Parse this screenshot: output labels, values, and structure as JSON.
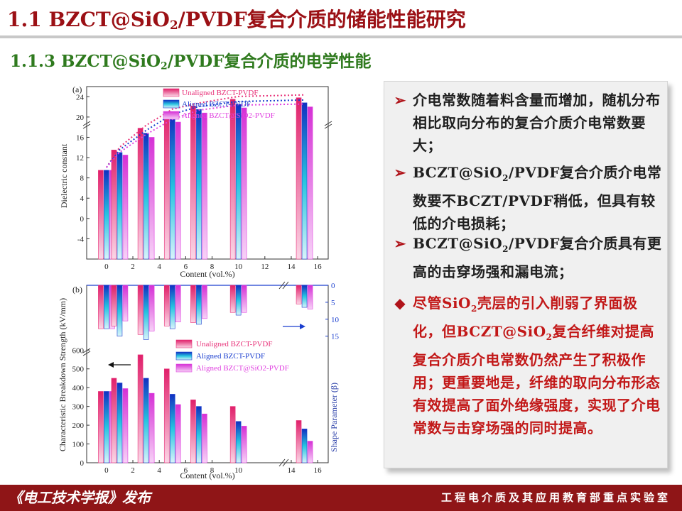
{
  "header": {
    "title_prefix": "1.1 BZCT@SiO",
    "title_sub": "2",
    "title_suffix": "/PVDF复合介质的储能性能研究"
  },
  "section": {
    "title_prefix": "1.1.3 BZCT@SiO",
    "title_sub": "2",
    "title_suffix": "/PVDF复合介质的电学性能"
  },
  "bullets": [
    {
      "marker": "➢",
      "pre": "介电常数随着料含量而增加，随机分布相比取向分布的复合介质介电常数要大；",
      "sub": "",
      "post": ""
    },
    {
      "marker": "➢",
      "pre": "BCZT@SiO",
      "sub": "2",
      "post": "/PVDF复合介质介电常数要不BCZT/PVDF稍低，但具有较低的介电损耗；"
    },
    {
      "marker": "➢",
      "pre": "BCZT@SiO",
      "sub": "2",
      "post": "/PVDF复合介质具有更高的击穿场强和漏电流；"
    },
    {
      "marker": "◆",
      "pre": "尽管SiO",
      "sub": "2",
      "mid": "壳层的引入削弱了界面极化，但BCZT@SiO",
      "sub2": "2",
      "post": "复合纤维对提高复合介质介电常数仍然产生了积极作用；更重要地是，纤维的取向分布形态有效提高了面外绝缘强度，实现了介电常数与击穿场强的同时提高。"
    }
  ],
  "footer": {
    "left": "《电工技术学报》发布",
    "right": "工程电介质及其应用教育部重点实验室"
  },
  "colors": {
    "title_red": "#9b1015",
    "subtitle_green": "#2f7a1e",
    "series_unaligned": "#e8337a",
    "series_aligned": "#1b3fcf",
    "series_sio2": "#e040e0"
  },
  "chart_data": [
    {
      "type": "bar",
      "panel_label": "(a)",
      "xlabel": "Content (vol.%)",
      "ylabel": "Dielectric constant",
      "x_ticks": [
        0,
        2,
        4,
        6,
        8,
        10,
        12,
        14,
        16
      ],
      "y_ticks": [
        -4,
        0,
        4,
        8,
        12,
        16,
        20,
        24
      ],
      "y_tick_labels": [
        "-4",
        "0",
        "4",
        "8",
        "12",
        "16",
        "20",
        "24"
      ],
      "ylim": [
        -8,
        26
      ],
      "axis_break": true,
      "legend_placement": "top-center",
      "x": [
        0,
        1,
        3,
        5,
        7,
        10,
        15
      ],
      "series": [
        {
          "name": "Unaligned BZCT-PVDF",
          "values": [
            9.5,
            13.5,
            17.8,
            21.0,
            22.2,
            23.5,
            23.8
          ]
        },
        {
          "name": "Aligned BZCT-PVDF",
          "values": [
            9.5,
            13.0,
            16.8,
            20.0,
            21.5,
            22.5,
            22.8
          ]
        },
        {
          "name": "Aligned BZCT@SiO2-PVDF",
          "values": [
            9.5,
            12.5,
            16.0,
            19.0,
            20.8,
            21.8,
            22.0
          ]
        }
      ]
    },
    {
      "type": "bar",
      "panel_label": "(b)",
      "xlabel": "Content (vol.%)",
      "ylabel": "Characteristic Breakdown Strength (kV/mm)",
      "ylabel_right": "Shape Parameter (β)",
      "x_ticks": [
        0,
        2,
        4,
        6,
        8,
        10,
        14,
        16
      ],
      "y_ticks": [
        0,
        100,
        200,
        300,
        400,
        500,
        600
      ],
      "y_tick_labels": [
        "0",
        "100",
        "200",
        "300",
        "400",
        "500",
        "600"
      ],
      "y_right_ticks": [
        0,
        5,
        10,
        15
      ],
      "y_right_tick_labels": [
        "0",
        "5",
        "10",
        "15"
      ],
      "ylim": [
        0,
        620
      ],
      "y_right_lim": [
        0,
        18
      ],
      "legend_placement": "center-right",
      "x": [
        0,
        1,
        3,
        5,
        7,
        10,
        15
      ],
      "breakdown_series": [
        {
          "name": "Unaligned BZCT-PVDF",
          "values": [
            380,
            450,
            575,
            500,
            335,
            300,
            225
          ]
        },
        {
          "name": "Aligned BZCT-PVDF",
          "values": [
            380,
            425,
            450,
            365,
            300,
            220,
            180
          ]
        },
        {
          "name": "Aligned BZCT@SiO2-PVDF",
          "values": [
            380,
            395,
            370,
            310,
            260,
            195,
            115
          ]
        }
      ],
      "shape_series": [
        {
          "name": "Unaligned BZCT-PVDF",
          "values": [
            12.8,
            12.0,
            14.5,
            12.0,
            11.0,
            8.0,
            5.5
          ]
        },
        {
          "name": "Aligned BZCT-PVDF",
          "values": [
            12.8,
            15.0,
            16.0,
            12.8,
            11.5,
            8.8,
            6.5
          ]
        },
        {
          "name": "Aligned BZCT@SiO2-PVDF",
          "values": [
            12.8,
            10.5,
            13.5,
            10.8,
            9.8,
            8.0,
            7.0
          ]
        }
      ]
    }
  ]
}
